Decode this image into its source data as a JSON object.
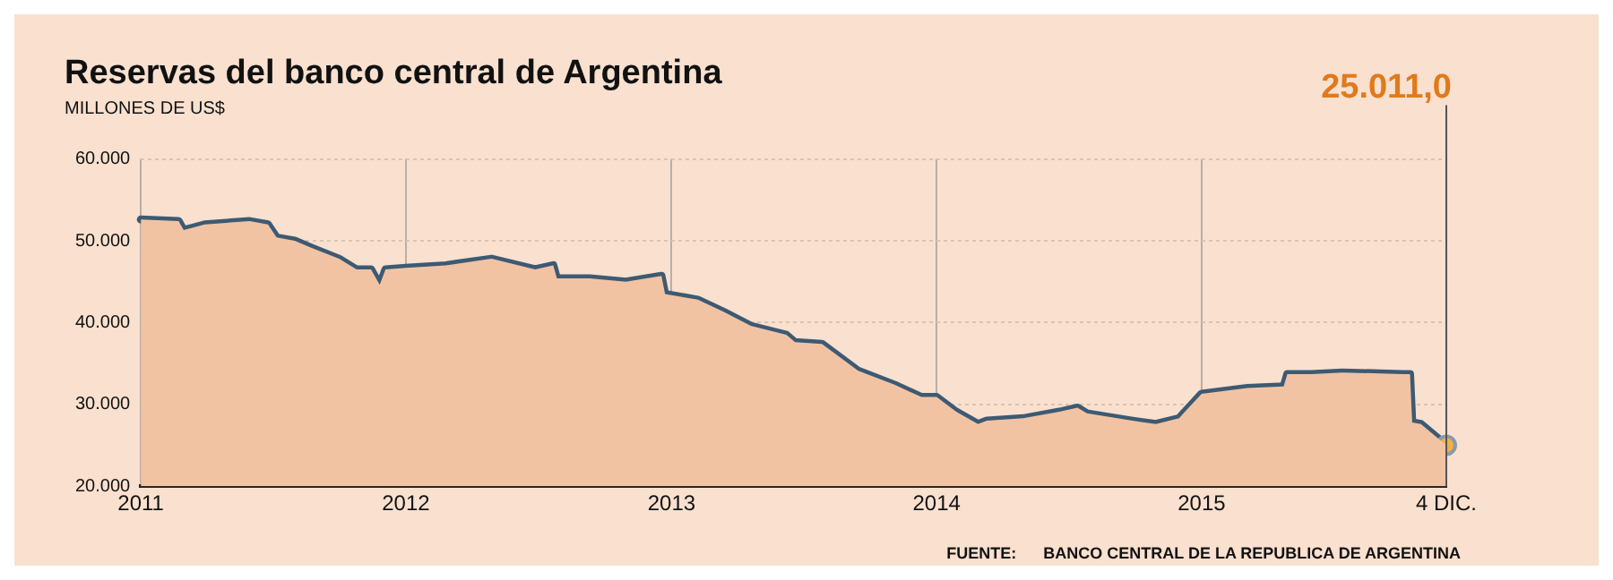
{
  "chart_data": {
    "type": "area",
    "title": "Reservas del banco central de Argentina",
    "subtitle": "MILLONES DE US$",
    "x": [
      "2011-01-01",
      "2011-02-22",
      "2011-03-01",
      "2011-03-30",
      "2011-05-31",
      "2011-06-25",
      "2011-07-07",
      "2011-08-01",
      "2011-08-25",
      "2011-10-01",
      "2011-10-25",
      "2011-11-14",
      "2011-11-26",
      "2011-12-04",
      "2012-01-01",
      "2012-02-25",
      "2012-04-28",
      "2012-06-27",
      "2012-07-22",
      "2012-07-27",
      "2012-09-10",
      "2012-10-30",
      "2012-12-18",
      "2012-12-23",
      "2013-02-06",
      "2013-03-14",
      "2013-04-20",
      "2013-06-08",
      "2013-06-20",
      "2013-07-27",
      "2013-09-15",
      "2013-11-04",
      "2013-12-11",
      "2014-01-01",
      "2014-01-28",
      "2014-02-27",
      "2014-03-11",
      "2014-04-30",
      "2014-06-19",
      "2014-07-14",
      "2014-07-27",
      "2014-09-28",
      "2014-10-30",
      "2014-12-01",
      "2014-12-09",
      "2015-01-01",
      "2015-03-05",
      "2015-04-24",
      "2015-04-29",
      "2015-06-01",
      "2015-07-14",
      "2015-10-05",
      "2015-10-15",
      "2015-10-18",
      "2015-10-30",
      "2015-12-04"
    ],
    "series": [
      {
        "color": "#f2c3a3",
        "values": [
          52600,
          52400,
          51300,
          52000,
          52400,
          52000,
          50400,
          50000,
          49100,
          47800,
          46500,
          46500,
          44600,
          46500,
          46700,
          47000,
          47800,
          46500,
          47000,
          45400,
          45400,
          45000,
          45700,
          43500,
          42800,
          41300,
          39600,
          38500,
          37600,
          37400,
          34100,
          32400,
          30900,
          30900,
          29100,
          27600,
          28000,
          28300,
          29100,
          29600,
          28900,
          28000,
          27600,
          28300,
          29100,
          31300,
          32000,
          32200,
          33700,
          33700,
          33900,
          33700,
          33700,
          27800,
          27600,
          25011
        ]
      },
      {
        "type": "line",
        "color": "#3d5a73",
        "values": [
          52600,
          52400,
          51300,
          52000,
          52400,
          52000,
          50400,
          50000,
          49100,
          47800,
          46500,
          46500,
          44600,
          46500,
          46700,
          47000,
          47800,
          46500,
          47000,
          45400,
          45400,
          45000,
          45700,
          43500,
          42800,
          41300,
          39600,
          38500,
          37600,
          37400,
          34100,
          32400,
          30900,
          30900,
          29100,
          27600,
          28000,
          28300,
          29100,
          29600,
          28900,
          28000,
          27600,
          28300,
          29100,
          31300,
          32000,
          32200,
          33700,
          33700,
          33900,
          33700,
          33700,
          27800,
          27600,
          25011
        ]
      }
    ],
    "xlim": [
      "2011-01-01",
      "2015-12-04"
    ],
    "xticks": [
      {
        "value": "2011-01-01",
        "label": "2011"
      },
      {
        "value": "2012-01-01",
        "label": "2012"
      },
      {
        "value": "2013-01-01",
        "label": "2013"
      },
      {
        "value": "2014-01-01",
        "label": "2014"
      },
      {
        "value": "2015-01-01",
        "label": "2015"
      },
      {
        "value": "2015-12-04",
        "label": "4 DIC."
      }
    ],
    "ylim": [
      20000,
      60000
    ],
    "yticks": [
      {
        "value": 20000,
        "label": "20.000"
      },
      {
        "value": 30000,
        "label": "30.000"
      },
      {
        "value": 40000,
        "label": "40.000"
      },
      {
        "value": 50000,
        "label": "50.000"
      },
      {
        "value": 60000,
        "label": "60.000"
      }
    ],
    "grid": true,
    "legend": false,
    "marker": "none",
    "line_style": "solid",
    "annotations": [
      "25.011,0",
      "FUENTE:      BANCO CENTRAL DE LA REPUBLICA DE ARGENTINA"
    ]
  }
}
